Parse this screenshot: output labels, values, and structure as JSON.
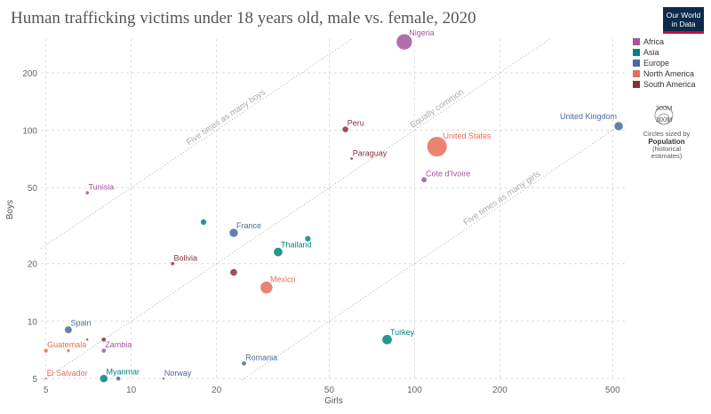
{
  "title": "Human trafficking victims under 18 years old, male vs. female, 2020",
  "logo": {
    "line1": "Our World",
    "line2": "in Data"
  },
  "chart_data": {
    "type": "scatter",
    "title": "Human trafficking victims under 18 years old, male vs. female, 2020",
    "xlabel": "Girls",
    "ylabel": "Boys",
    "xscale": "log",
    "yscale": "log",
    "xlim": [
      4.8,
      560
    ],
    "ylim": [
      4.9,
      300
    ],
    "xticks": [
      5,
      10,
      20,
      50,
      100,
      200,
      500
    ],
    "yticks": [
      5,
      10,
      20,
      50,
      100,
      200
    ],
    "grid": true,
    "legend_position": "right",
    "reference_lines": [
      {
        "label": "Five times as many boys",
        "ratio": 5
      },
      {
        "label": "Equally common",
        "ratio": 1
      },
      {
        "label": "Five times as many girls",
        "ratio": 0.2
      }
    ],
    "legend": [
      {
        "name": "Africa",
        "color": "#a2559c"
      },
      {
        "name": "Asia",
        "color": "#00847e"
      },
      {
        "name": "Europe",
        "color": "#4c6a9c"
      },
      {
        "name": "North America",
        "color": "#e56e5a"
      },
      {
        "name": "South America",
        "color": "#883039"
      }
    ],
    "size_legend": {
      "large": "300M",
      "small": "100M",
      "caption_line1": "Circles sized by",
      "caption_bold1": "Population",
      "caption_bold2": "(historical",
      "caption_bold3": "estimates)"
    },
    "points": [
      {
        "label": "Nigeria",
        "x": 92,
        "y": 290,
        "region": "Africa",
        "pop": 208
      },
      {
        "label": "United States",
        "x": 120,
        "y": 82,
        "region": "North America",
        "pop": 335
      },
      {
        "label": "United Kingdom",
        "x": 525,
        "y": 105,
        "region": "Europe",
        "pop": 67
      },
      {
        "label": "Peru",
        "x": 57,
        "y": 101,
        "region": "South America",
        "pop": 33
      },
      {
        "label": "Paraguay",
        "x": 60,
        "y": 71,
        "region": "South America",
        "pop": 7
      },
      {
        "label": "Cote d'Ivoire",
        "x": 108,
        "y": 55,
        "region": "Africa",
        "pop": 27
      },
      {
        "label": "Tunisia",
        "x": 7,
        "y": 47,
        "region": "Africa",
        "pop": 12
      },
      {
        "label": "",
        "x": 18,
        "y": 33,
        "region": "Asia",
        "pop": 30
      },
      {
        "label": "France",
        "x": 23,
        "y": 29,
        "region": "Europe",
        "pop": 65
      },
      {
        "label": "Thailand",
        "x": 33,
        "y": 23,
        "region": "Asia",
        "pop": 70
      },
      {
        "label": "",
        "x": 42,
        "y": 27,
        "region": "Asia",
        "pop": 30
      },
      {
        "label": "Bolivia",
        "x": 14,
        "y": 20,
        "region": "South America",
        "pop": 12
      },
      {
        "label": "",
        "x": 23,
        "y": 18,
        "region": "South America",
        "pop": 45
      },
      {
        "label": "Mexico",
        "x": 30,
        "y": 15,
        "region": "North America",
        "pop": 128
      },
      {
        "label": "Spain",
        "x": 6,
        "y": 9,
        "region": "Europe",
        "pop": 47
      },
      {
        "label": "",
        "x": 7,
        "y": 8,
        "region": "South America",
        "pop": 3
      },
      {
        "label": "",
        "x": 8,
        "y": 8,
        "region": "South America",
        "pop": 18
      },
      {
        "label": "Guatemala",
        "x": 5,
        "y": 7,
        "region": "North America",
        "pop": 17
      },
      {
        "label": "",
        "x": 6,
        "y": 7,
        "region": "North America",
        "pop": 10
      },
      {
        "label": "Zambia",
        "x": 8,
        "y": 7,
        "region": "Africa",
        "pop": 18
      },
      {
        "label": "Turkey",
        "x": 80,
        "y": 8,
        "region": "Asia",
        "pop": 84
      },
      {
        "label": "Romania",
        "x": 25,
        "y": 6,
        "region": "Europe",
        "pop": 19
      },
      {
        "label": "El Salvador",
        "x": 5,
        "y": 5,
        "region": "North America",
        "pop": 6
      },
      {
        "label": "Myanmar",
        "x": 8,
        "y": 5,
        "region": "Asia",
        "pop": 54
      },
      {
        "label": "",
        "x": 9,
        "y": 5,
        "region": "Europe",
        "pop": 18
      },
      {
        "label": "Norway",
        "x": 13,
        "y": 5,
        "region": "Europe",
        "pop": 5
      }
    ]
  }
}
